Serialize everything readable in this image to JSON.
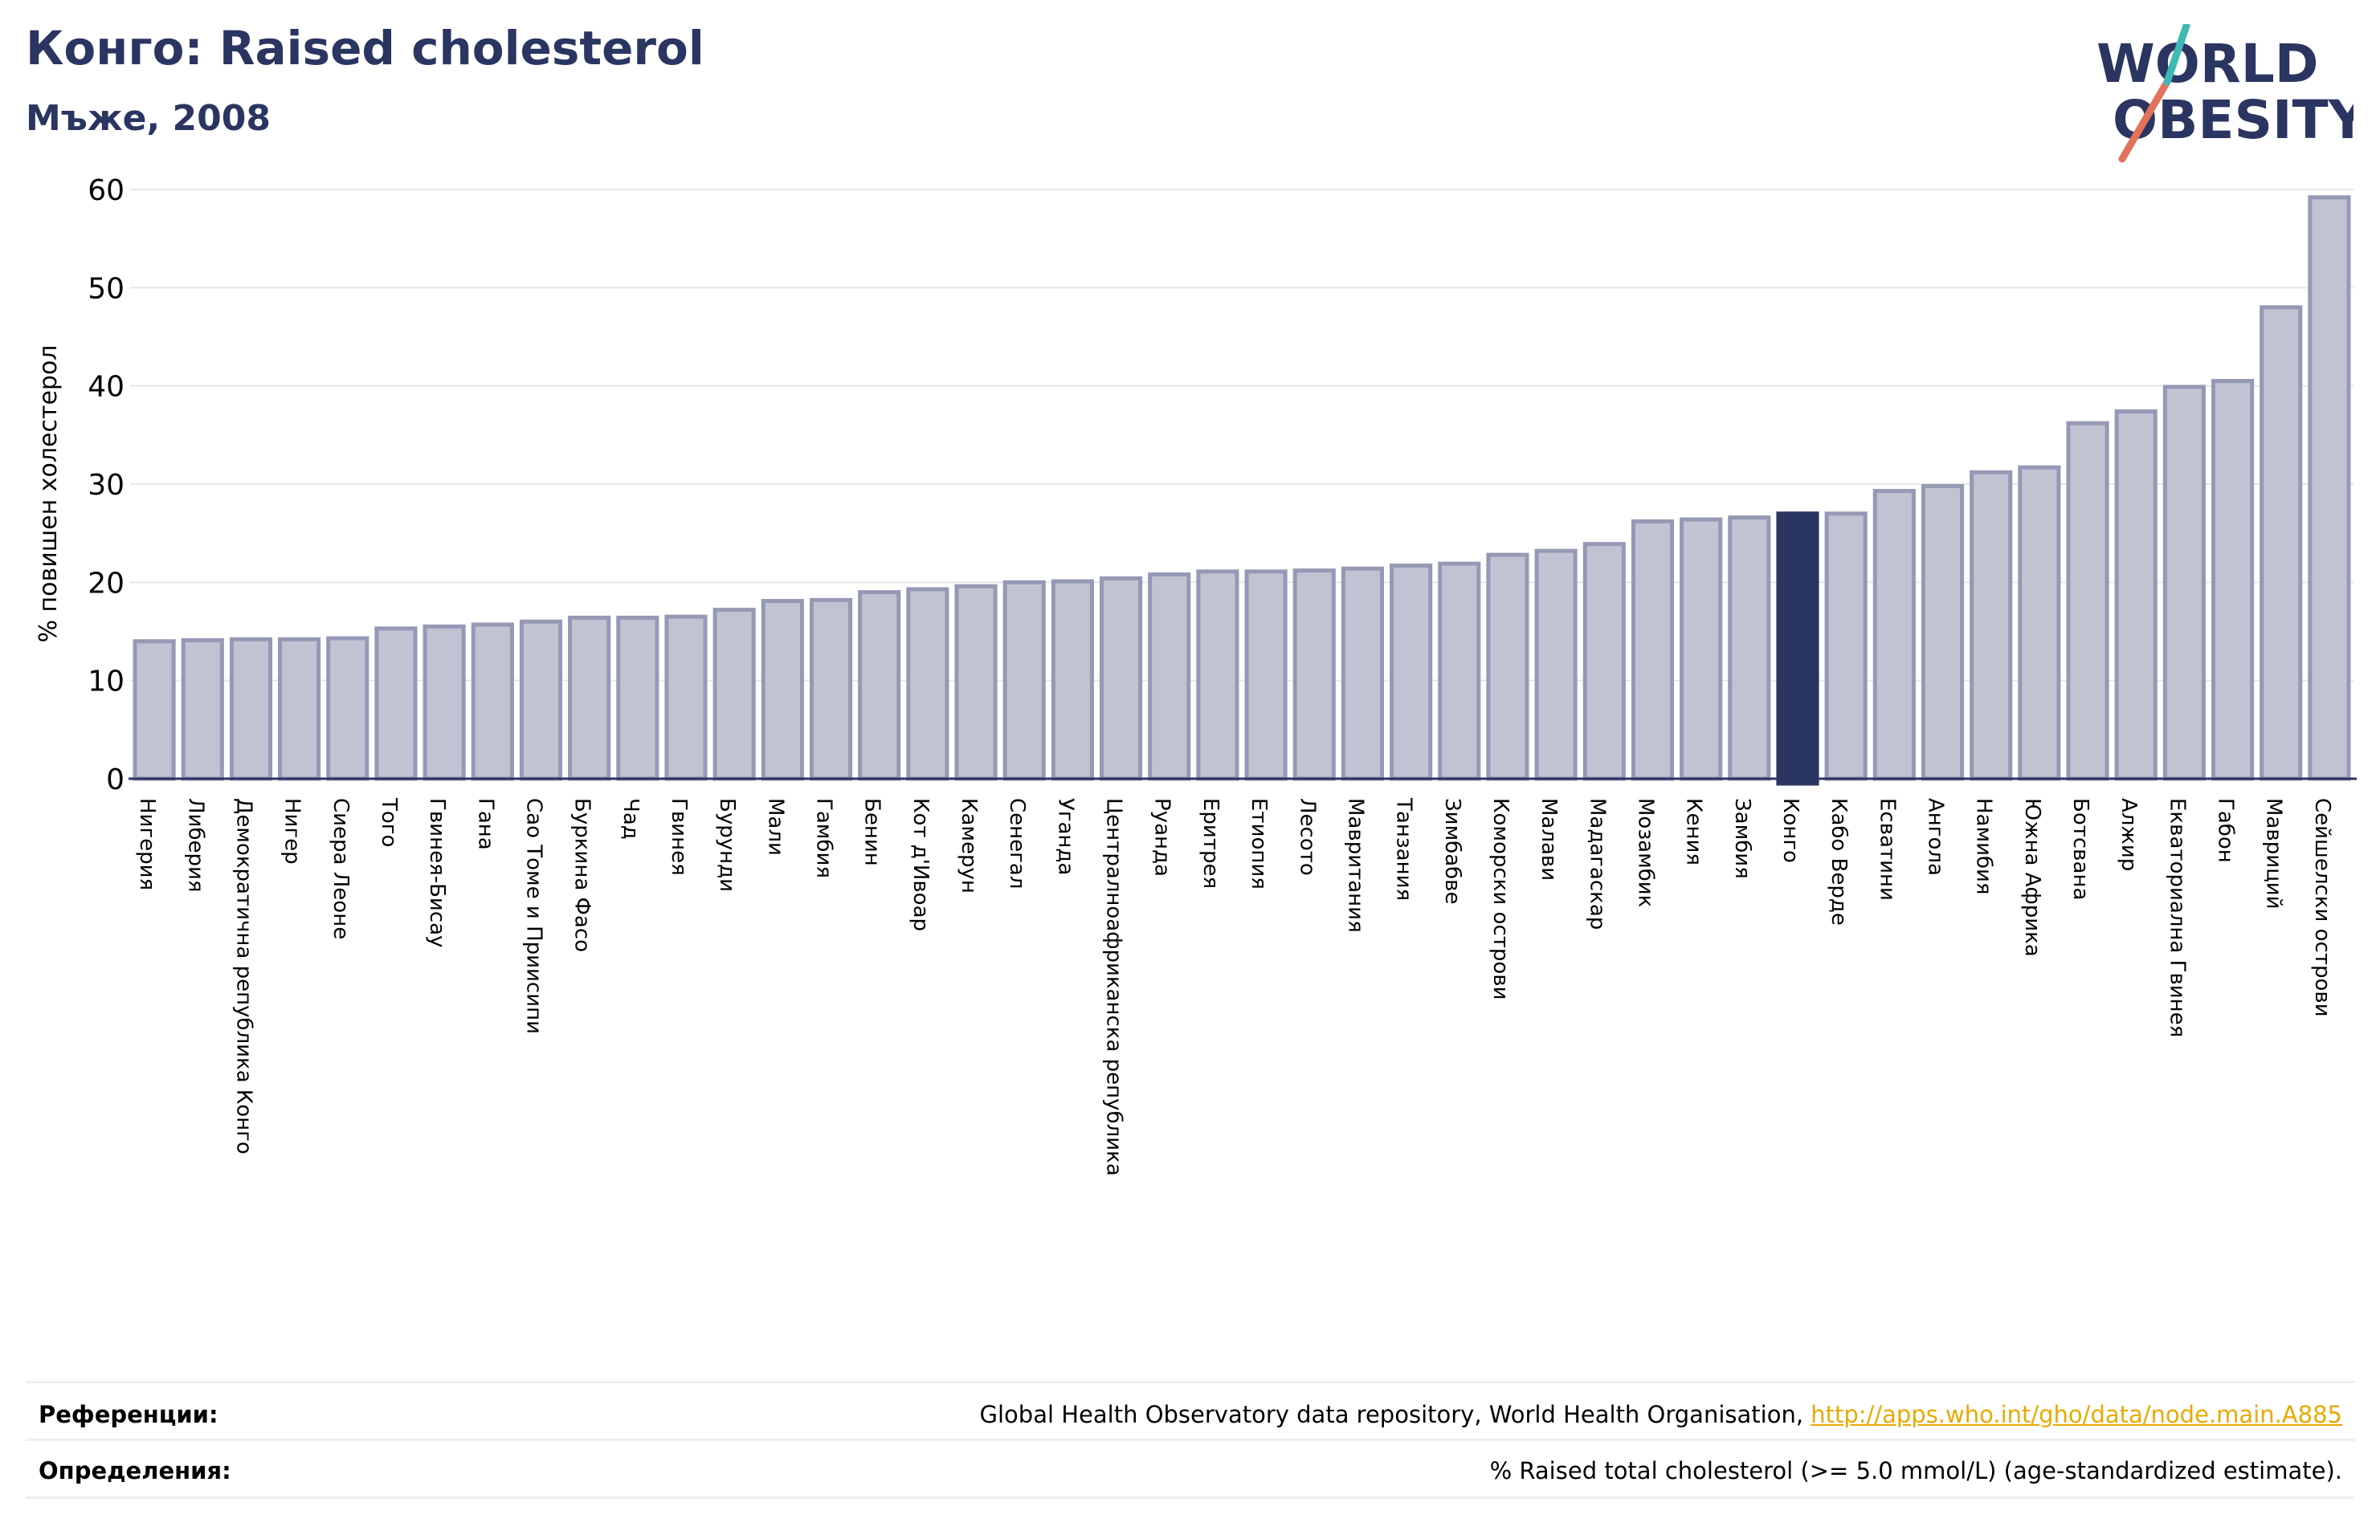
{
  "header": {
    "title": "Конго: Raised cholesterol",
    "subtitle": "Мъже, 2008",
    "logo_text_1": "WORLD",
    "logo_text_2": "OBESITY"
  },
  "colors": {
    "bar_fill": "#c0c3d2",
    "bar_stroke": "#9599b5",
    "highlight": "#2b3561",
    "title": "#2b3561",
    "link": "#e8a900"
  },
  "chart_data": {
    "type": "bar",
    "title": "Конго: Raised cholesterol",
    "subtitle": "Мъже, 2008",
    "xlabel": "",
    "ylabel": "% повишен холестерол",
    "ylim": [
      0,
      62
    ],
    "yticks": [
      0,
      10,
      20,
      30,
      40,
      50,
      60
    ],
    "grid": true,
    "highlight": "Конго",
    "categories": [
      "Нигерия",
      "Либерия",
      "Демократична република Конго",
      "Нигер",
      "Сиера Леоне",
      "Того",
      "Гвинея-Бисау",
      "Гана",
      "Сао Томе и Приисипи",
      "Буркина Фасо",
      "Чад",
      "Гвинея",
      "Бурунди",
      "Мали",
      "Гамбия",
      "Бенин",
      "Кот д'Ивоар",
      "Камерун",
      "Сенегал",
      "Уганда",
      "Централноафриканска република",
      "Руанда",
      "Еритрея",
      "Етиопия",
      "Лесото",
      "Мавритания",
      "Танзания",
      "Зимбабве",
      "Коморски острови",
      "Малави",
      "Мадагаскар",
      "Мозамбик",
      "Кения",
      "Замбия",
      "Конго",
      "Кабо Верде",
      "Есватини",
      "Ангола",
      "Намибия",
      "Южна Африка",
      "Ботсвана",
      "Алжир",
      "Екваториална Гвинея",
      "Габон",
      "Мавриций",
      "Сейшелски острови"
    ],
    "values": [
      14.0,
      14.1,
      14.2,
      14.2,
      14.3,
      15.3,
      15.5,
      15.7,
      16.0,
      16.4,
      16.4,
      16.5,
      17.2,
      18.1,
      18.2,
      19.0,
      19.3,
      19.6,
      20.0,
      20.1,
      20.4,
      20.8,
      21.1,
      21.1,
      21.2,
      21.4,
      21.7,
      21.9,
      22.8,
      23.2,
      23.9,
      26.2,
      26.4,
      26.6,
      27.0,
      27.0,
      29.3,
      29.8,
      31.2,
      31.7,
      36.2,
      37.4,
      39.9,
      40.5,
      48.0,
      59.2
    ]
  },
  "footer": {
    "references_label": "Референции:",
    "references_text": "Global Health Observatory data repository, World Health Organisation, ",
    "references_link": "http://apps.who.int/gho/data/node.main.A885",
    "definitions_label": "Определения:",
    "definitions_text": "% Raised total cholesterol (>= 5.0 mmol/L) (age-standardized estimate)."
  }
}
